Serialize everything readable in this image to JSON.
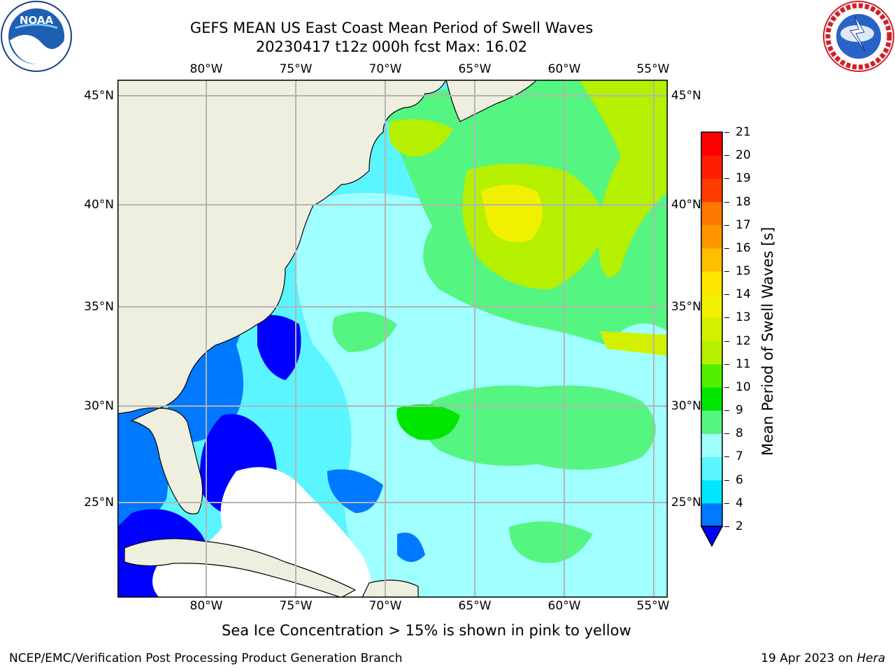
{
  "title": {
    "line1": "GEFS MEAN US East Coast Mean Period of Swell Waves",
    "line2": "20230417 t12z 000h fcst   Max: 16.02"
  },
  "map": {
    "lon_ticks": [
      "80°W",
      "75°W",
      "70°W",
      "65°W",
      "60°W",
      "55°W"
    ],
    "lat_ticks": [
      "45°N",
      "40°N",
      "35°N",
      "30°N",
      "25°N"
    ],
    "land_color": "#efefe0",
    "grid_color": "#b4b4b4"
  },
  "colorbar": {
    "label": "Mean Period of Swell Waves [s]",
    "extend": "min",
    "ticks": [
      "2",
      "4",
      "6",
      "7",
      "8",
      "9",
      "10",
      "11",
      "12",
      "13",
      "14",
      "15",
      "16",
      "17",
      "18",
      "19",
      "20",
      "21"
    ],
    "colors": [
      "#0078ff",
      "#00e6ff",
      "#5af5ff",
      "#a0ffff",
      "#55f582",
      "#00e600",
      "#50f000",
      "#b4f000",
      "#d2f000",
      "#f0f000",
      "#ffe600",
      "#ffbe00",
      "#ff9600",
      "#ff7800",
      "#ff3c00",
      "#ff1e00",
      "#ff0000"
    ],
    "under_color": "#0000ff"
  },
  "caption": "Sea Ice Concentration > 15% is shown in pink to yellow",
  "footer": {
    "left": "NCEP/EMC/Verification Post Processing Product Generation Branch",
    "date": "19 Apr 2023 on ",
    "machine": "Hera"
  },
  "logos": {
    "left": {
      "name": "noaa-logo",
      "text": "NOAA"
    },
    "right": {
      "name": "nws-logo",
      "text": "NATIONAL WEATHER SERVICE"
    }
  }
}
